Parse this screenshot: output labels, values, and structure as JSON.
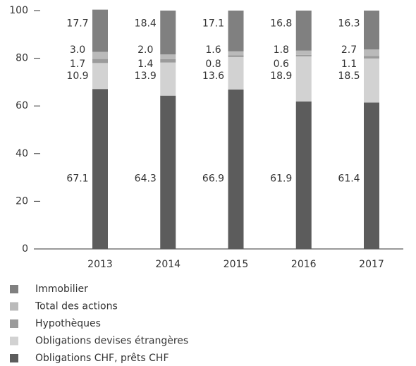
{
  "chart_data": {
    "type": "stacked_bar",
    "categories": [
      "2013",
      "2014",
      "2015",
      "2016",
      "2017"
    ],
    "series": [
      {
        "name": "Obligations CHF, prêts CHF",
        "color": "#5c5c5c",
        "values": [
          67.1,
          64.3,
          66.9,
          61.9,
          61.4
        ]
      },
      {
        "name": "Obligations devises étrangères",
        "color": "#d2d2d2",
        "values": [
          10.9,
          13.9,
          13.6,
          18.9,
          18.5
        ]
      },
      {
        "name": "Hypothèques",
        "color": "#9b9b9b",
        "values": [
          1.7,
          1.4,
          0.8,
          0.6,
          1.1
        ]
      },
      {
        "name": "Total des actions",
        "color": "#bababa",
        "values": [
          3.0,
          2.0,
          1.6,
          1.8,
          2.7
        ],
        "value_labels": [
          "3.0",
          "2.0",
          "1.6",
          "1.8",
          "2.7"
        ]
      },
      {
        "name": "Immobilier",
        "color": "#808080",
        "values": [
          17.7,
          18.4,
          17.1,
          16.8,
          16.3
        ]
      }
    ],
    "ylim": [
      0,
      100
    ],
    "yticks": [
      0,
      20,
      40,
      60,
      80,
      100
    ],
    "grid": false
  }
}
